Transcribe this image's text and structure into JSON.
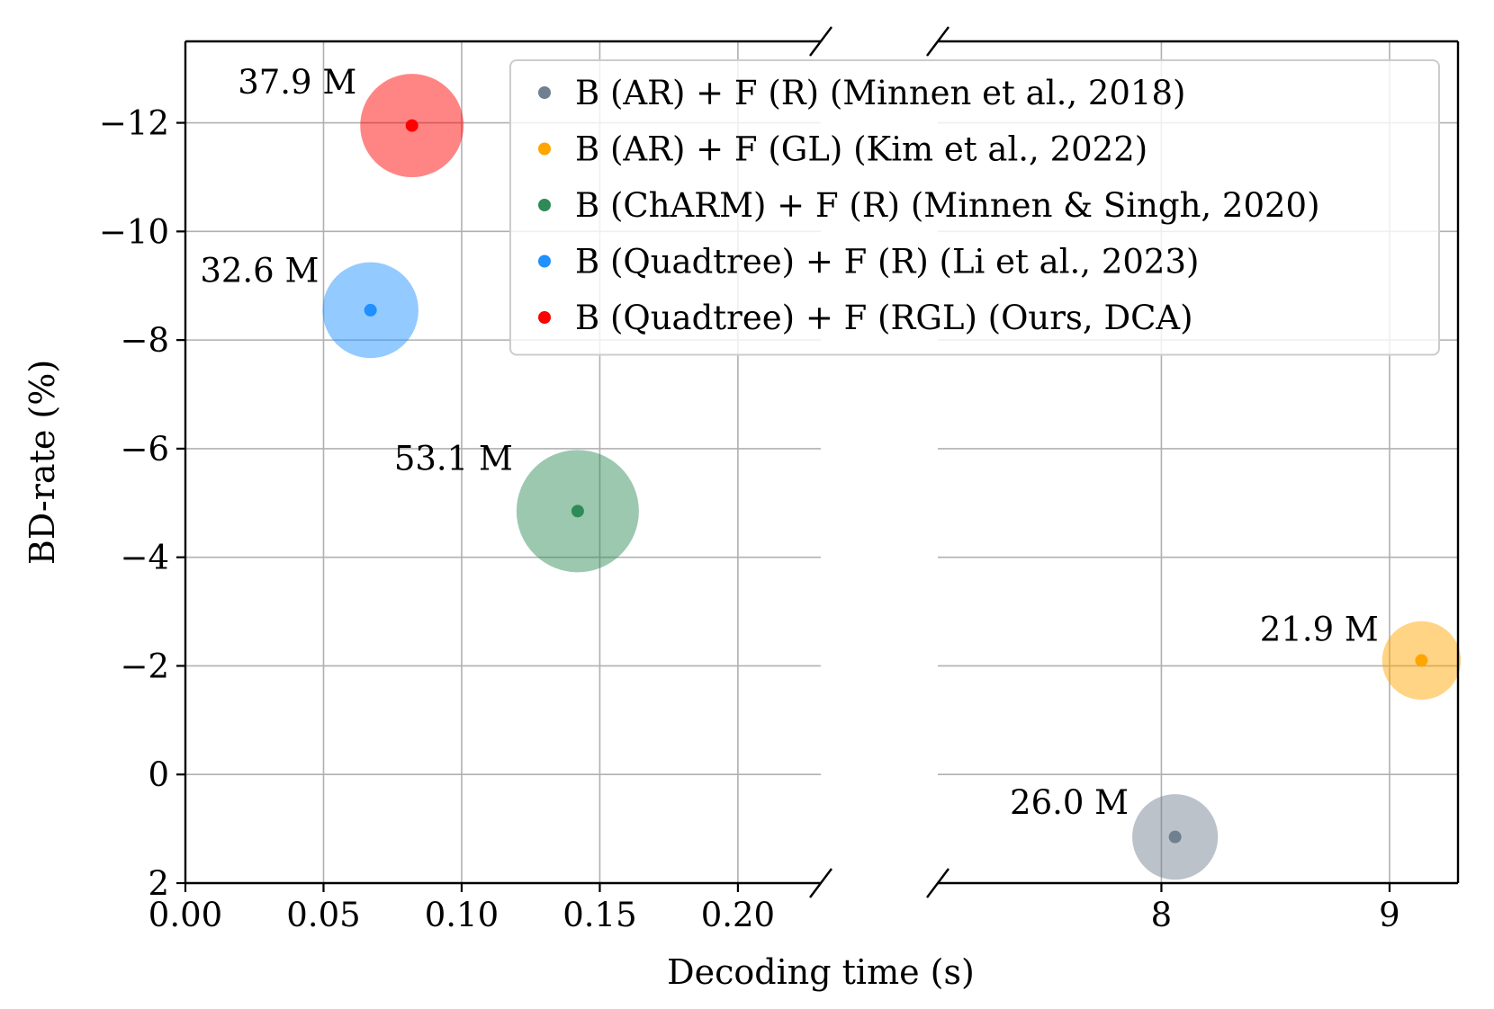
{
  "chart_data": {
    "type": "scatter",
    "xlabel": "Decoding time (s)",
    "ylabel": "BD-rate (%)",
    "y_inverted": true,
    "ylim": [
      2,
      -13.5
    ],
    "y_ticks": [
      2,
      0,
      -2,
      -4,
      -6,
      -8,
      -10,
      -12
    ],
    "y_tick_labels": [
      "2",
      "0",
      "−2",
      "−4",
      "−6",
      "−8",
      "−10",
      "−12"
    ],
    "broken_x_axis": true,
    "x_left": {
      "range": [
        0.0,
        0.23
      ],
      "ticks": [
        0.0,
        0.05,
        0.1,
        0.15,
        0.2
      ],
      "tick_labels": [
        "0.00",
        "0.05",
        "0.10",
        "0.15",
        "0.20"
      ]
    },
    "x_right": {
      "range": [
        7.02,
        9.3
      ],
      "ticks": [
        8,
        9
      ],
      "tick_labels": [
        "8",
        "9"
      ]
    },
    "grid": true,
    "legend_position": "top-right",
    "series": [
      {
        "name": "B (AR) + F (R) (Minnen et al., 2018)",
        "color": "#708090",
        "x": 8.06,
        "y": 1.15,
        "size_label": "26.0 M",
        "params_m": 26.0,
        "panel": "right"
      },
      {
        "name": "B (AR) + F (GL) (Kim et al., 2022)",
        "color": "#FFA500",
        "x": 9.14,
        "y": -2.1,
        "size_label": "21.9 M",
        "params_m": 21.9,
        "panel": "right"
      },
      {
        "name": "B (ChARM) + F (R) (Minnen & Singh, 2020)",
        "color": "#2E8B57",
        "x": 0.142,
        "y": -4.85,
        "size_label": "53.1 M",
        "params_m": 53.1,
        "panel": "left"
      },
      {
        "name": "B (Quadtree) + F (R) (Li et al., 2023)",
        "color": "#1E90FF",
        "x": 0.067,
        "y": -8.55,
        "size_label": "32.6 M",
        "params_m": 32.6,
        "panel": "left"
      },
      {
        "name": "B (Quadtree) + F (RGL) (Ours, DCA)",
        "color": "#FF0000",
        "x": 0.082,
        "y": -11.95,
        "size_label": "37.9 M",
        "params_m": 37.9,
        "panel": "left"
      }
    ]
  }
}
